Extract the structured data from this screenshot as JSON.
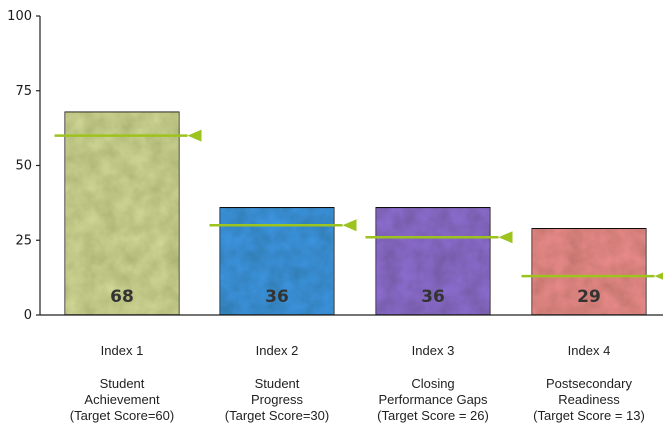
{
  "chart_data": {
    "type": "bar",
    "ylim": [
      0,
      100
    ],
    "yticks": [
      0,
      25,
      50,
      75,
      100
    ],
    "categories": [
      "Index 1",
      "Index 2",
      "Index 3",
      "Index 4"
    ],
    "descriptions": [
      [
        "Student",
        "Achievement",
        "(Target Score=60)"
      ],
      [
        "Student",
        "Progress",
        "(Target Score=30)"
      ],
      [
        "Closing",
        "Performance Gaps",
        "(Target Score = 26)"
      ],
      [
        "Postsecondary",
        "Readiness",
        "(Target Score = 13)"
      ]
    ],
    "values": [
      68,
      36,
      36,
      29
    ],
    "targets": [
      60,
      30,
      26,
      13
    ],
    "bar_colors": [
      "#d4da98",
      "#3e98e8",
      "#8f6fd6",
      "#ef8e8e"
    ],
    "target_color": "#9cc31e"
  }
}
